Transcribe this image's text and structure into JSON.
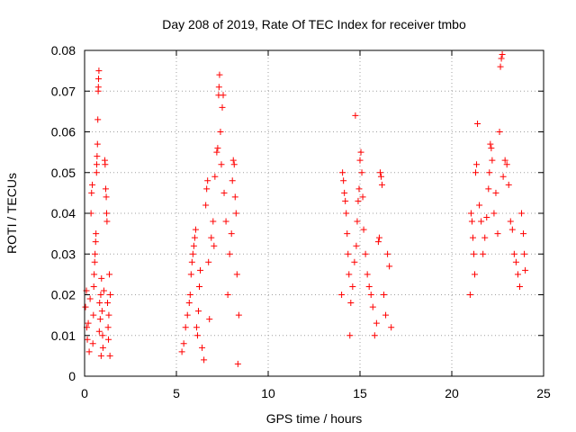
{
  "chart_data": {
    "type": "scatter",
    "title": "Day 208 of 2019, Rate Of TEC Index for receiver tmbo",
    "xlabel": "GPS time / hours",
    "ylabel": "ROTI / TECUs",
    "xlim": [
      0,
      25
    ],
    "ylim": [
      0,
      0.08
    ],
    "xticks": [
      0,
      5,
      10,
      15,
      20,
      25
    ],
    "xtick_labels": [
      "0",
      "5",
      "10",
      "15",
      "20",
      "25"
    ],
    "yticks": [
      0,
      0.01,
      0.02,
      0.03,
      0.04,
      0.05,
      0.06,
      0.07,
      0.08
    ],
    "ytick_labels": [
      "0",
      "0.01",
      "0.02",
      "0.03",
      "0.04",
      "0.05",
      "0.06",
      "0.07",
      "0.08"
    ],
    "grid": true,
    "marker": "+",
    "marker_color": "#ff0000",
    "series": [
      {
        "name": "ROTI",
        "points": [
          [
            0.05,
            0.017
          ],
          [
            0.1,
            0.021
          ],
          [
            0.12,
            0.012
          ],
          [
            0.15,
            0.009
          ],
          [
            0.2,
            0.013
          ],
          [
            0.25,
            0.006
          ],
          [
            0.3,
            0.019
          ],
          [
            0.35,
            0.04
          ],
          [
            0.38,
            0.045
          ],
          [
            0.42,
            0.047
          ],
          [
            0.45,
            0.008
          ],
          [
            0.48,
            0.015
          ],
          [
            0.5,
            0.022
          ],
          [
            0.52,
            0.025
          ],
          [
            0.55,
            0.028
          ],
          [
            0.57,
            0.03
          ],
          [
            0.6,
            0.033
          ],
          [
            0.62,
            0.035
          ],
          [
            0.65,
            0.05
          ],
          [
            0.66,
            0.052
          ],
          [
            0.68,
            0.054
          ],
          [
            0.7,
            0.057
          ],
          [
            0.72,
            0.063
          ],
          [
            0.74,
            0.07
          ],
          [
            0.75,
            0.071
          ],
          [
            0.76,
            0.073
          ],
          [
            0.78,
            0.075
          ],
          [
            0.8,
            0.011
          ],
          [
            0.82,
            0.018
          ],
          [
            0.85,
            0.014
          ],
          [
            0.88,
            0.02
          ],
          [
            0.9,
            0.005
          ],
          [
            0.92,
            0.024
          ],
          [
            0.95,
            0.016
          ],
          [
            0.98,
            0.01
          ],
          [
            1.0,
            0.007
          ],
          [
            1.05,
            0.021
          ],
          [
            1.1,
            0.053
          ],
          [
            1.12,
            0.052
          ],
          [
            1.15,
            0.046
          ],
          [
            1.18,
            0.044
          ],
          [
            1.2,
            0.04
          ],
          [
            1.22,
            0.038
          ],
          [
            1.25,
            0.018
          ],
          [
            1.28,
            0.012
          ],
          [
            1.3,
            0.009
          ],
          [
            1.32,
            0.015
          ],
          [
            1.35,
            0.025
          ],
          [
            1.38,
            0.005
          ],
          [
            1.4,
            0.02
          ],
          [
            5.3,
            0.006
          ],
          [
            5.4,
            0.008
          ],
          [
            5.5,
            0.012
          ],
          [
            5.6,
            0.015
          ],
          [
            5.7,
            0.018
          ],
          [
            5.75,
            0.02
          ],
          [
            5.8,
            0.025
          ],
          [
            5.85,
            0.028
          ],
          [
            5.9,
            0.03
          ],
          [
            5.95,
            0.032
          ],
          [
            6.0,
            0.034
          ],
          [
            6.05,
            0.036
          ],
          [
            6.1,
            0.012
          ],
          [
            6.15,
            0.01
          ],
          [
            6.2,
            0.016
          ],
          [
            6.25,
            0.022
          ],
          [
            6.3,
            0.026
          ],
          [
            6.4,
            0.007
          ],
          [
            6.5,
            0.004
          ],
          [
            6.6,
            0.042
          ],
          [
            6.65,
            0.046
          ],
          [
            6.7,
            0.048
          ],
          [
            6.75,
            0.028
          ],
          [
            6.8,
            0.014
          ],
          [
            6.9,
            0.034
          ],
          [
            7.0,
            0.038
          ],
          [
            7.05,
            0.032
          ],
          [
            7.1,
            0.049
          ],
          [
            7.2,
            0.055
          ],
          [
            7.25,
            0.056
          ],
          [
            7.3,
            0.069
          ],
          [
            7.32,
            0.071
          ],
          [
            7.35,
            0.074
          ],
          [
            7.4,
            0.06
          ],
          [
            7.45,
            0.052
          ],
          [
            7.5,
            0.066
          ],
          [
            7.55,
            0.069
          ],
          [
            7.6,
            0.045
          ],
          [
            7.7,
            0.038
          ],
          [
            7.8,
            0.02
          ],
          [
            7.9,
            0.03
          ],
          [
            8.0,
            0.035
          ],
          [
            8.05,
            0.048
          ],
          [
            8.1,
            0.053
          ],
          [
            8.15,
            0.052
          ],
          [
            8.2,
            0.044
          ],
          [
            8.25,
            0.04
          ],
          [
            8.3,
            0.025
          ],
          [
            8.35,
            0.003
          ],
          [
            8.4,
            0.015
          ],
          [
            14.0,
            0.02
          ],
          [
            14.05,
            0.05
          ],
          [
            14.1,
            0.048
          ],
          [
            14.15,
            0.045
          ],
          [
            14.2,
            0.043
          ],
          [
            14.25,
            0.04
          ],
          [
            14.3,
            0.035
          ],
          [
            14.35,
            0.03
          ],
          [
            14.4,
            0.025
          ],
          [
            14.45,
            0.01
          ],
          [
            14.5,
            0.018
          ],
          [
            14.6,
            0.022
          ],
          [
            14.7,
            0.028
          ],
          [
            14.8,
            0.032
          ],
          [
            14.85,
            0.038
          ],
          [
            14.9,
            0.043
          ],
          [
            14.95,
            0.046
          ],
          [
            15.0,
            0.053
          ],
          [
            15.05,
            0.055
          ],
          [
            15.1,
            0.05
          ],
          [
            14.75,
            0.064
          ],
          [
            15.15,
            0.044
          ],
          [
            15.2,
            0.036
          ],
          [
            15.3,
            0.03
          ],
          [
            15.4,
            0.025
          ],
          [
            15.5,
            0.022
          ],
          [
            15.6,
            0.02
          ],
          [
            15.7,
            0.017
          ],
          [
            15.8,
            0.01
          ],
          [
            15.9,
            0.013
          ],
          [
            16.0,
            0.033
          ],
          [
            16.05,
            0.034
          ],
          [
            16.1,
            0.05
          ],
          [
            16.15,
            0.049
          ],
          [
            16.2,
            0.047
          ],
          [
            16.3,
            0.02
          ],
          [
            16.4,
            0.015
          ],
          [
            16.5,
            0.03
          ],
          [
            16.6,
            0.027
          ],
          [
            16.7,
            0.012
          ],
          [
            21.0,
            0.02
          ],
          [
            21.05,
            0.04
          ],
          [
            21.1,
            0.038
          ],
          [
            21.15,
            0.034
          ],
          [
            21.2,
            0.03
          ],
          [
            21.25,
            0.025
          ],
          [
            21.3,
            0.05
          ],
          [
            21.35,
            0.052
          ],
          [
            21.4,
            0.062
          ],
          [
            21.5,
            0.042
          ],
          [
            21.6,
            0.038
          ],
          [
            21.7,
            0.03
          ],
          [
            21.8,
            0.034
          ],
          [
            21.9,
            0.039
          ],
          [
            22.0,
            0.046
          ],
          [
            22.05,
            0.05
          ],
          [
            22.1,
            0.057
          ],
          [
            22.15,
            0.056
          ],
          [
            22.2,
            0.053
          ],
          [
            22.3,
            0.04
          ],
          [
            22.4,
            0.045
          ],
          [
            22.5,
            0.035
          ],
          [
            22.6,
            0.06
          ],
          [
            22.65,
            0.076
          ],
          [
            22.7,
            0.078
          ],
          [
            22.75,
            0.079
          ],
          [
            22.8,
            0.049
          ],
          [
            22.9,
            0.053
          ],
          [
            23.0,
            0.052
          ],
          [
            23.1,
            0.047
          ],
          [
            23.2,
            0.038
          ],
          [
            23.3,
            0.036
          ],
          [
            23.4,
            0.03
          ],
          [
            23.5,
            0.028
          ],
          [
            23.6,
            0.025
          ],
          [
            23.7,
            0.022
          ],
          [
            23.8,
            0.04
          ],
          [
            23.9,
            0.035
          ],
          [
            23.95,
            0.03
          ],
          [
            24.0,
            0.026
          ]
        ]
      }
    ]
  }
}
